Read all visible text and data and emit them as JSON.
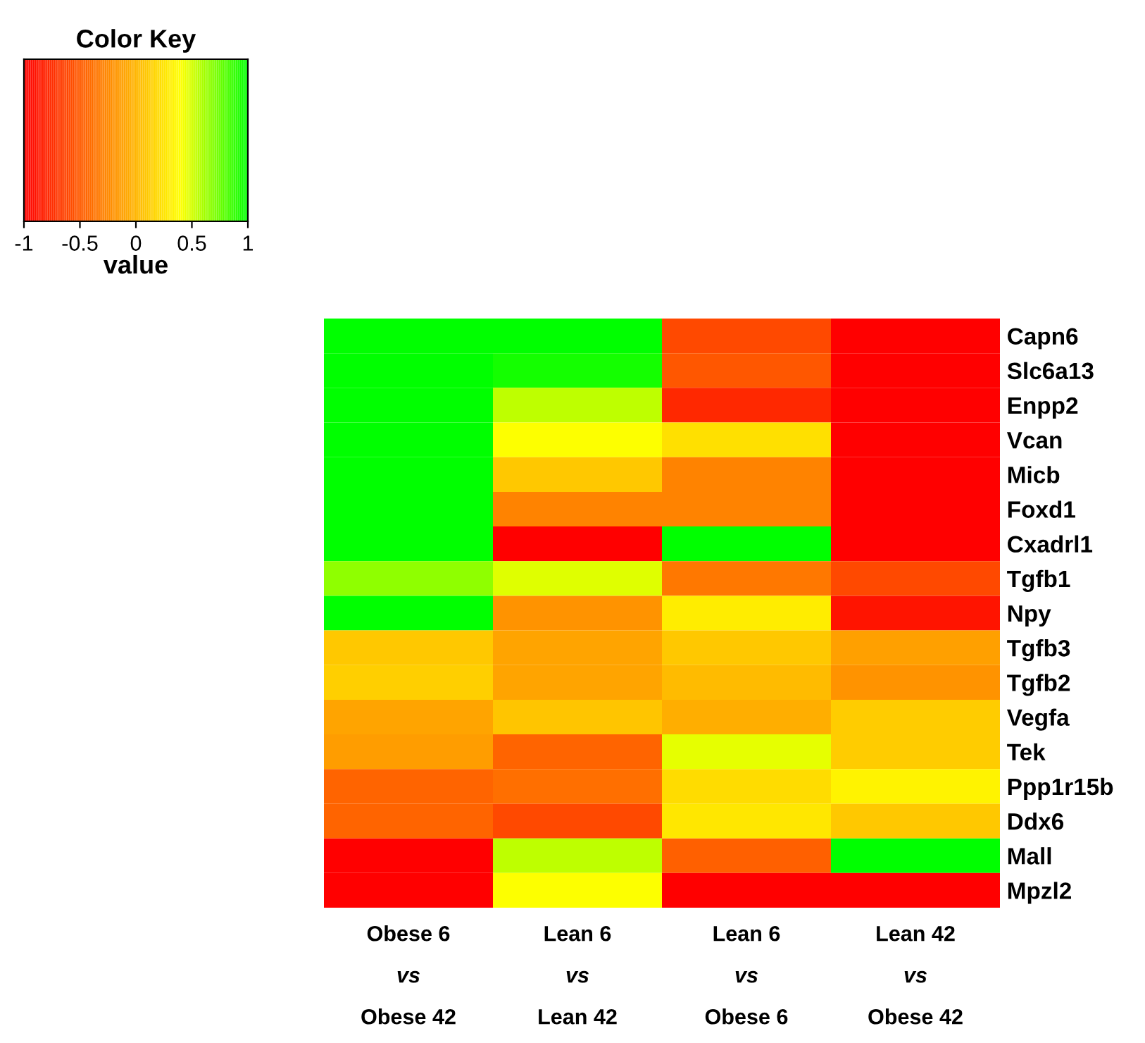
{
  "chart_data": {
    "type": "heatmap",
    "legend_title": "Color Key",
    "clabel": "value",
    "clim": [
      -1,
      1
    ],
    "cticks": [
      -1,
      -0.5,
      0,
      0.5,
      1
    ],
    "categories": [
      "Obese 6\nvs\nObese 42",
      "Lean 6\nvs\nLean 42",
      "Lean 6\nvs\nObese 6",
      "Lean 42\nvs\nObese 42"
    ],
    "y_categories": [
      "Capn6",
      "Slc6a13",
      "Enpp2",
      "Vcan",
      "Micb",
      "Foxd1",
      "Cxadrl1",
      "Tgfb1",
      "Npy",
      "Tgfb3",
      "Tgfb2",
      "Vegfa",
      "Tek",
      "Ppp1r15b",
      "Ddx6",
      "Mall",
      "Mpzl2"
    ],
    "cells": [
      [
        1,
        1,
        -0.6,
        -1
      ],
      [
        1,
        0.95,
        -0.52,
        -1
      ],
      [
        1,
        0.55,
        -0.78,
        -1
      ],
      [
        1,
        0.4,
        0.23,
        -1
      ],
      [
        1,
        0.1,
        -0.28,
        -1
      ],
      [
        1,
        -0.28,
        -0.28,
        -1
      ],
      [
        1,
        -1,
        1,
        -1
      ],
      [
        0.66,
        0.47,
        -0.34,
        -0.6
      ],
      [
        1,
        -0.19,
        0.3,
        -0.89
      ],
      [
        0.1,
        -0.1,
        0.1,
        -0.12
      ],
      [
        0.14,
        -0.1,
        0.03,
        -0.19
      ],
      [
        -0.1,
        0.08,
        -0.04,
        0.12
      ],
      [
        -0.14,
        -0.45,
        0.46,
        0.12
      ],
      [
        -0.45,
        -0.39,
        0.21,
        0.33
      ],
      [
        -0.45,
        -0.6,
        0.27,
        0.1
      ],
      [
        -1,
        0.55,
        -0.47,
        1
      ],
      [
        -1,
        0.4,
        -1,
        -1
      ]
    ]
  }
}
